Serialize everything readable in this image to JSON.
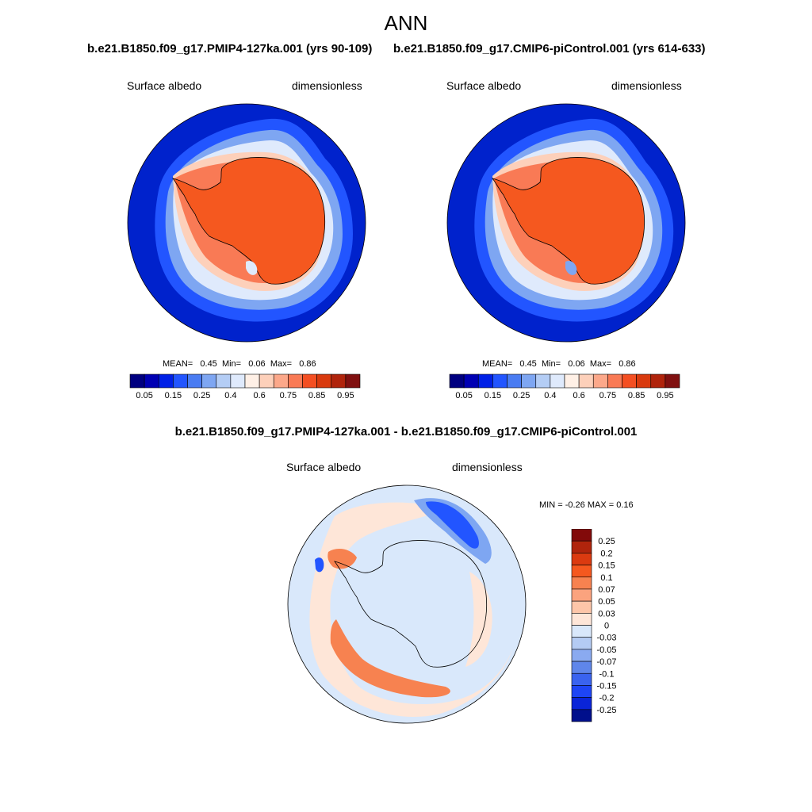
{
  "figure": {
    "title": "ANN"
  },
  "panels": [
    {
      "title": "b.e21.B1850.f09_g17.PMIP4-127ka.001 (yrs 90-109)",
      "left_label": "Surface albedo",
      "right_label": "dimensionless",
      "stats": {
        "mean_label": "MEAN=",
        "mean": "0.45",
        "min_label": "Min=",
        "min": "0.06",
        "max_label": "Max=",
        "max": "0.86"
      }
    },
    {
      "title": "b.e21.B1850.f09_g17.CMIP6-piControl.001 (yrs 614-633)",
      "left_label": "Surface albedo",
      "right_label": "dimensionless",
      "stats": {
        "mean_label": "MEAN=",
        "mean": "0.45",
        "min_label": "Min=",
        "min": "0.06",
        "max_label": "Max=",
        "max": "0.86"
      }
    }
  ],
  "difference": {
    "title": "b.e21.B1850.f09_g17.PMIP4-127ka.001 - b.e21.B1850.f09_g17.CMIP6-piControl.001",
    "left_label": "Surface albedo",
    "right_label": "dimensionless",
    "minmax": "MIN =  -0.26 MAX =   0.16"
  },
  "colorbars": {
    "absolute": {
      "colors": [
        "#000080",
        "#0000b3",
        "#0020e6",
        "#2255ff",
        "#4a7cf2",
        "#7ea6f2",
        "#b4cdf5",
        "#dfeafc",
        "#fff0e6",
        "#fdd0ba",
        "#fca88a",
        "#f97a55",
        "#f44f22",
        "#d93a0e",
        "#b0240c",
        "#801010"
      ],
      "labels": [
        "0.05",
        "0.15",
        "0.25",
        "0.4",
        "0.6",
        "0.75",
        "0.85",
        "0.95"
      ]
    },
    "difference": {
      "colors": [
        "#820a0a",
        "#b0240c",
        "#db3a10",
        "#f5581f",
        "#f78250",
        "#fba37e",
        "#fdc6a9",
        "#fee6d8",
        "#d9e8fb",
        "#b4cbf3",
        "#8aaaf0",
        "#5f86ea",
        "#3a63ef",
        "#1e45f5",
        "#0a24d8",
        "#000f8c"
      ],
      "labels": [
        "0.25",
        "0.2",
        "0.15",
        "0.1",
        "0.07",
        "0.05",
        "0.03",
        "0",
        "-0.03",
        "-0.05",
        "-0.07",
        "-0.1",
        "-0.15",
        "-0.2",
        "-0.25"
      ]
    }
  },
  "map_colors": {
    "ocean_dark": "#0022cc",
    "ocean_mid": "#2255ff",
    "ocean_light": "#7ea6f2",
    "ice_pale": "#dfeafc",
    "coast_peach": "#fdd0ba",
    "ice_orange": "#f97a55",
    "land": "#f5581f",
    "diff_bg": "#d9e8fb",
    "diff_peach": "#fee6d8",
    "diff_red": "#f78250"
  }
}
